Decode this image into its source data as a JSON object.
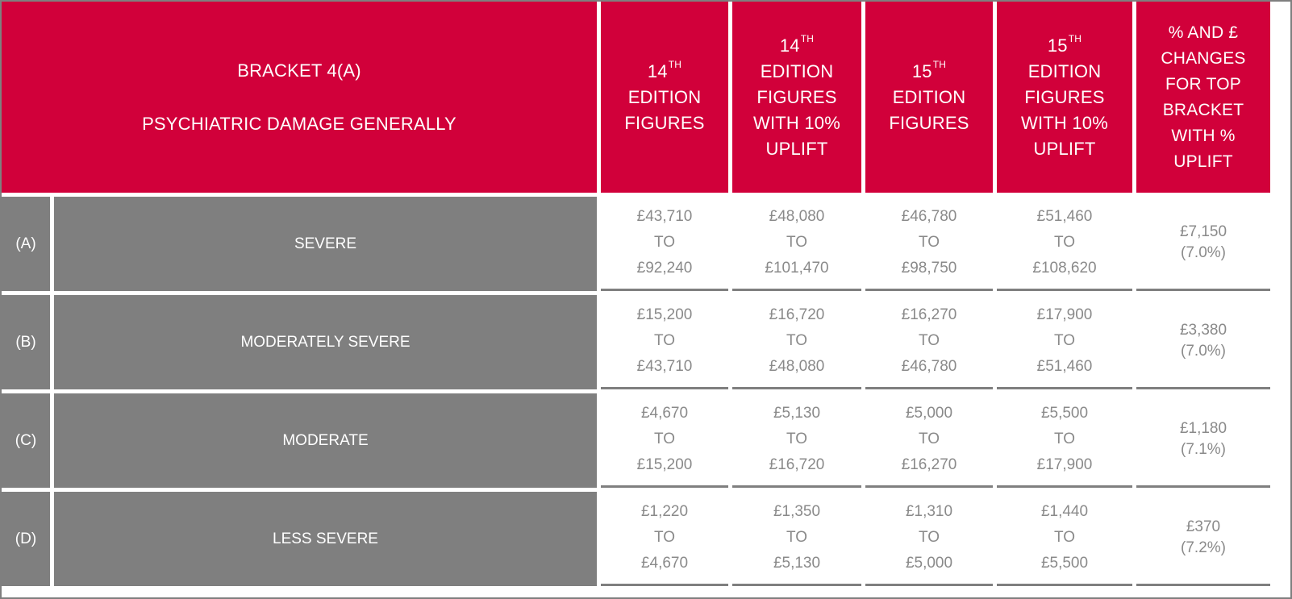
{
  "header": {
    "bracket_title": "BRACKET 4(A)",
    "bracket_subtitle": "PSYCHIATRIC DAMAGE GENERALLY",
    "col1": {
      "num": "14",
      "sup": "TH",
      "lines": [
        "EDITION",
        "FIGURES"
      ]
    },
    "col2": {
      "num": "14",
      "sup": "TH",
      "lines": [
        "EDITION",
        "FIGURES",
        "WITH 10%",
        "UPLIFT"
      ]
    },
    "col3": {
      "num": "15",
      "sup": "TH",
      "lines": [
        "EDITION",
        "FIGURES"
      ]
    },
    "col4": {
      "num": "15",
      "sup": "TH",
      "lines": [
        "EDITION",
        "FIGURES",
        "WITH 10%",
        "UPLIFT"
      ]
    },
    "col5": {
      "lines": [
        "% AND £",
        "CHANGES",
        "FOR TOP",
        "BRACKET",
        "WITH %",
        "UPLIFT"
      ]
    }
  },
  "connector": "TO",
  "rows": [
    {
      "letter": "(A)",
      "label": "SEVERE",
      "ranges": [
        [
          "£43,710",
          "£92,240"
        ],
        [
          "£48,080",
          "£101,470"
        ],
        [
          "£46,780",
          "£98,750"
        ],
        [
          "£51,460",
          "£108,620"
        ]
      ],
      "change": "£7,150",
      "change_pct": "(7.0%)"
    },
    {
      "letter": "(B)",
      "label": "MODERATELY SEVERE",
      "ranges": [
        [
          "£15,200",
          "£43,710"
        ],
        [
          "£16,720",
          "£48,080"
        ],
        [
          "£16,270",
          "£46,780"
        ],
        [
          "£17,900",
          "£51,460"
        ]
      ],
      "change": "£3,380",
      "change_pct": "(7.0%)"
    },
    {
      "letter": "(C)",
      "label": "MODERATE",
      "ranges": [
        [
          "£4,670",
          "£15,200"
        ],
        [
          "£5,130",
          "£16,720"
        ],
        [
          "£5,000",
          "£16,270"
        ],
        [
          "£5,500",
          "£17,900"
        ]
      ],
      "change": "£1,180",
      "change_pct": "(7.1%)"
    },
    {
      "letter": "(D)",
      "label": "LESS SEVERE",
      "ranges": [
        [
          "£1,220",
          "£4,670"
        ],
        [
          "£1,350",
          "£5,130"
        ],
        [
          "£1,310",
          "£5,000"
        ],
        [
          "£1,440",
          "£5,500"
        ]
      ],
      "change": "£370",
      "change_pct": "(7.2%)"
    }
  ],
  "colors": {
    "header_bg": "#d1003a",
    "row_label_bg": "#7f7f7f",
    "value_text": "#8a8a8a"
  }
}
